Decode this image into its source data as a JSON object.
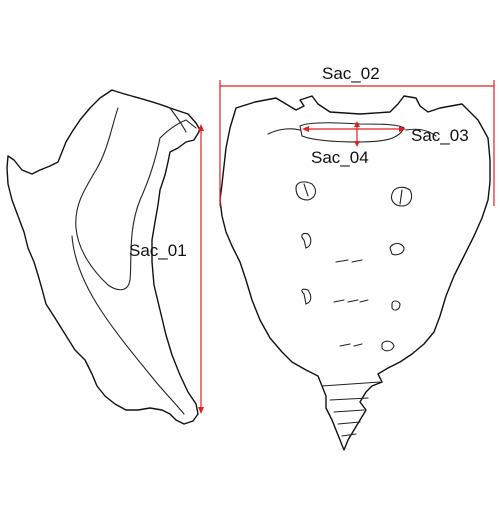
{
  "colors": {
    "measure_line": "#e02020",
    "outline": "#111111",
    "background": "#ffffff"
  },
  "figures": {
    "lateral_view": {
      "name": "sacrum-lateral-view"
    },
    "anterior_view": {
      "name": "sacrum-anterior-view"
    }
  },
  "measurements": {
    "sac01": {
      "label": "Sac_01"
    },
    "sac02": {
      "label": "Sac_02"
    },
    "sac03": {
      "label": "Sac_03"
    },
    "sac04": {
      "label": "Sac_04"
    }
  }
}
